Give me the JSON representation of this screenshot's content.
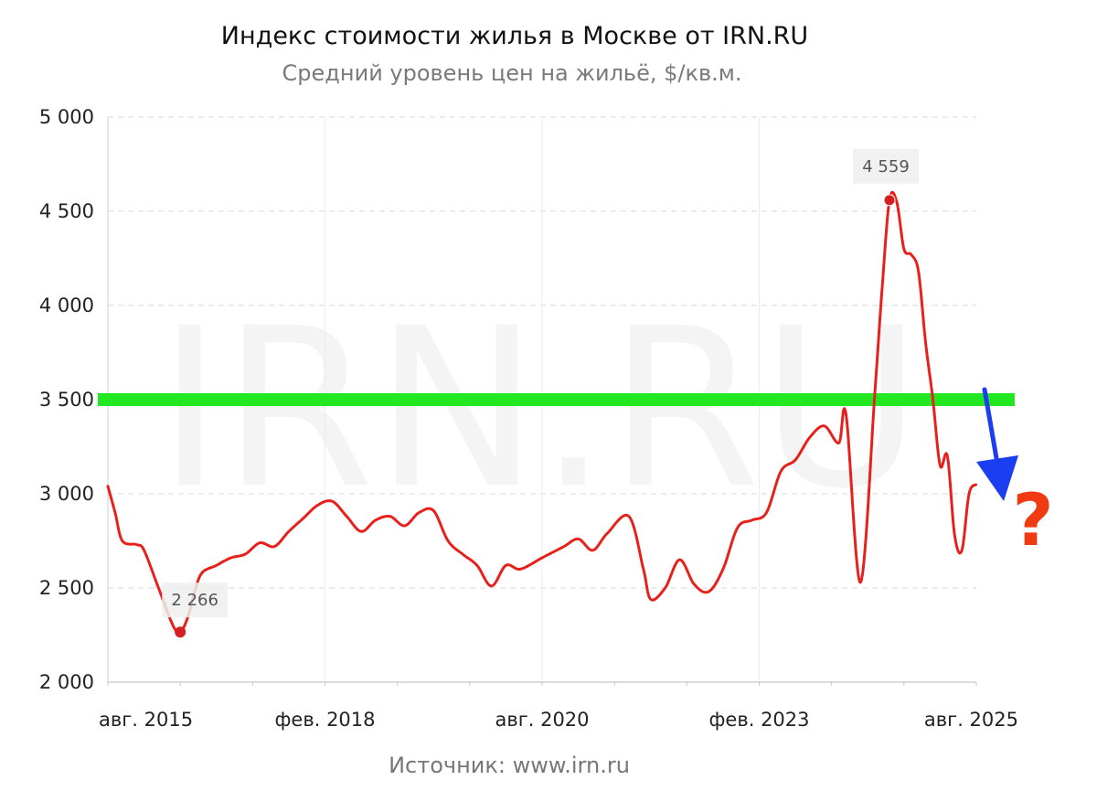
{
  "chart_data": {
    "type": "line",
    "title": "Индекс стоимости жилья в Москве от IRN.RU",
    "subtitle": "Средний уровень цен на жильё, $/кв.м.",
    "source": "Источник: www.irn.ru",
    "watermark": "IRN.RU",
    "ylim": [
      2000,
      5000
    ],
    "yticks": [
      2000,
      2500,
      3000,
      3500,
      4000,
      4500,
      5000
    ],
    "ytick_labels": [
      "2 000",
      "2 500",
      "3 000",
      "3 500",
      "4 000",
      "4 500",
      "5 000"
    ],
    "xlim": [
      "2015-08",
      "2025-08"
    ],
    "xticks": [
      "2015-08",
      "2018-02",
      "2020-08",
      "2023-02",
      "2025-08"
    ],
    "xtick_labels": [
      "авг. 2015",
      "фев. 2018",
      "авг. 2020",
      "фев. 2023",
      "авг. 2025"
    ],
    "grid": true,
    "series": [
      {
        "color": "#e8201c",
        "points": [
          [
            "2015-08",
            3040
          ],
          [
            "2015-09",
            2900
          ],
          [
            "2015-10",
            2750
          ],
          [
            "2015-12",
            2730
          ],
          [
            "2016-01",
            2700
          ],
          [
            "2016-03",
            2500
          ],
          [
            "2016-05",
            2300
          ],
          [
            "2016-06",
            2266
          ],
          [
            "2016-07",
            2340
          ],
          [
            "2016-08",
            2480
          ],
          [
            "2016-09",
            2580
          ],
          [
            "2016-11",
            2620
          ],
          [
            "2017-01",
            2660
          ],
          [
            "2017-03",
            2680
          ],
          [
            "2017-05",
            2740
          ],
          [
            "2017-07",
            2720
          ],
          [
            "2017-09",
            2800
          ],
          [
            "2017-11",
            2870
          ],
          [
            "2018-01",
            2940
          ],
          [
            "2018-03",
            2960
          ],
          [
            "2018-05",
            2880
          ],
          [
            "2018-07",
            2800
          ],
          [
            "2018-09",
            2860
          ],
          [
            "2018-11",
            2880
          ],
          [
            "2019-01",
            2830
          ],
          [
            "2019-03",
            2900
          ],
          [
            "2019-05",
            2910
          ],
          [
            "2019-07",
            2750
          ],
          [
            "2019-09",
            2680
          ],
          [
            "2019-11",
            2620
          ],
          [
            "2020-01",
            2510
          ],
          [
            "2020-03",
            2620
          ],
          [
            "2020-05",
            2600
          ],
          [
            "2020-08",
            2660
          ],
          [
            "2020-11",
            2720
          ],
          [
            "2021-01",
            2760
          ],
          [
            "2021-03",
            2700
          ],
          [
            "2021-05",
            2790
          ],
          [
            "2021-08",
            2880
          ],
          [
            "2021-10",
            2600
          ],
          [
            "2021-11",
            2440
          ],
          [
            "2022-01",
            2500
          ],
          [
            "2022-03",
            2650
          ],
          [
            "2022-05",
            2520
          ],
          [
            "2022-07",
            2480
          ],
          [
            "2022-09",
            2600
          ],
          [
            "2022-11",
            2820
          ],
          [
            "2023-01",
            2860
          ],
          [
            "2023-03",
            2900
          ],
          [
            "2023-05",
            3120
          ],
          [
            "2023-07",
            3180
          ],
          [
            "2023-09",
            3300
          ],
          [
            "2023-11",
            3360
          ],
          [
            "2024-01",
            3270
          ],
          [
            "2024-02",
            3420
          ],
          [
            "2024-04",
            2530
          ],
          [
            "2024-06",
            3550
          ],
          [
            "2024-07",
            4100
          ],
          [
            "2024-08",
            4559
          ],
          [
            "2024-09",
            4550
          ],
          [
            "2024-10",
            4300
          ],
          [
            "2024-11",
            4270
          ],
          [
            "2024-12",
            4180
          ],
          [
            "2025-01",
            3800
          ],
          [
            "2025-02",
            3500
          ],
          [
            "2025-03",
            3150
          ],
          [
            "2025-04",
            3200
          ],
          [
            "2025-05",
            2780
          ],
          [
            "2025-06",
            2700
          ],
          [
            "2025-07",
            3000
          ],
          [
            "2025-08",
            3050
          ]
        ]
      }
    ],
    "annotations": [
      {
        "label": "2 266",
        "value": 2266,
        "kind": "min"
      },
      {
        "label": "4 559",
        "value": 4559,
        "kind": "max"
      }
    ],
    "reference_line": {
      "value": 3500,
      "color": "#22e822"
    },
    "arrow_color": "#1a3ef0",
    "question_mark": {
      "text": "?",
      "color": "#f03a12"
    }
  }
}
